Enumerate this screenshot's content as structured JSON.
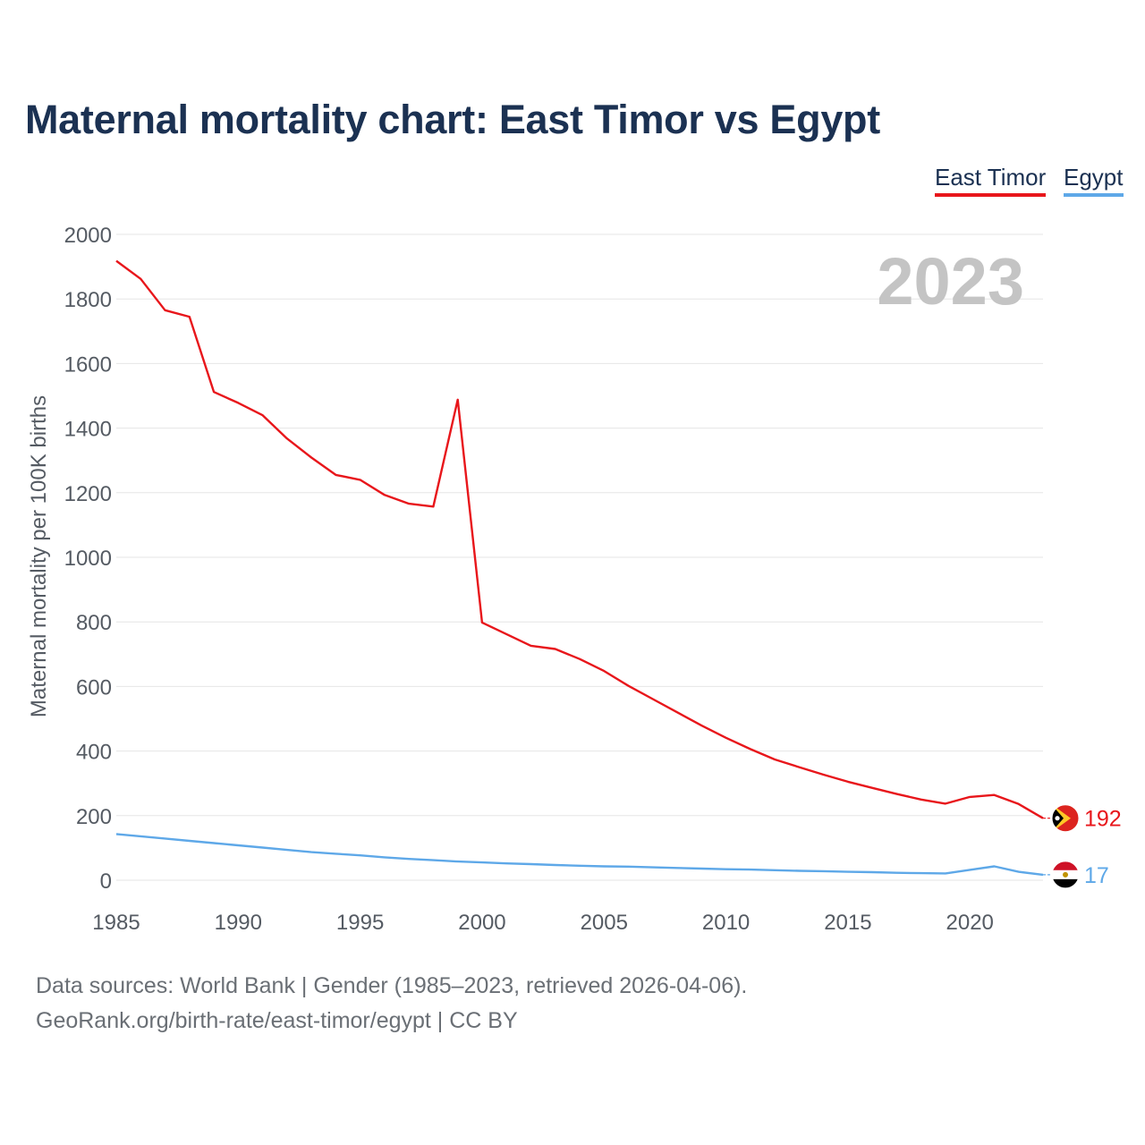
{
  "chart_data": {
    "type": "line",
    "title": "Maternal mortality chart: East Timor vs Egypt",
    "ylabel": "Maternal mortality per 100K births",
    "xlabel": "",
    "year_label": "2023",
    "xlim": [
      1985,
      2023
    ],
    "ylim": [
      0,
      2000
    ],
    "x_ticks": [
      1985,
      1990,
      1995,
      2000,
      2005,
      2010,
      2015,
      2020
    ],
    "y_ticks": [
      0,
      200,
      400,
      600,
      800,
      1000,
      1200,
      1400,
      1600,
      1800,
      2000
    ],
    "x": [
      1985,
      1986,
      1987,
      1988,
      1989,
      1990,
      1991,
      1992,
      1993,
      1994,
      1995,
      1996,
      1997,
      1998,
      1999,
      2000,
      2001,
      2002,
      2003,
      2004,
      2005,
      2006,
      2007,
      2008,
      2009,
      2010,
      2011,
      2012,
      2013,
      2014,
      2015,
      2016,
      2017,
      2018,
      2019,
      2020,
      2021,
      2022,
      2023
    ],
    "series": [
      {
        "name": "East Timor",
        "color": "#e8161b",
        "end_label": "192",
        "flag_icon": "east-timor-flag-icon",
        "values": [
          1918,
          1862,
          1765,
          1745,
          1512,
          1478,
          1440,
          1368,
          1309,
          1255,
          1240,
          1193,
          1166,
          1157,
          1488,
          798,
          762,
          726,
          716,
          685,
          648,
          602,
          561,
          520,
          479,
          441,
          406,
          374,
          350,
          327,
          305,
          286,
          267,
          250,
          237,
          258,
          264,
          236,
          192
        ]
      },
      {
        "name": "Egypt",
        "color": "#5ea8e8",
        "end_label": "17",
        "flag_icon": "egypt-flag-icon",
        "values": [
          143,
          136,
          129,
          122,
          115,
          108,
          101,
          94,
          87,
          82,
          77,
          71,
          66,
          62,
          58,
          55,
          52,
          50,
          47,
          45,
          43,
          42,
          40,
          38,
          36,
          34,
          33,
          31,
          29,
          28,
          26,
          25,
          23,
          22,
          21,
          32,
          43,
          26,
          17
        ]
      }
    ],
    "legend_position": "top-right"
  },
  "source": {
    "line1": "Data sources: World Bank | Gender (1985–2023, retrieved 2026-04-06).",
    "line2": "GeoRank.org/birth-rate/east-timor/egypt | CC BY"
  }
}
